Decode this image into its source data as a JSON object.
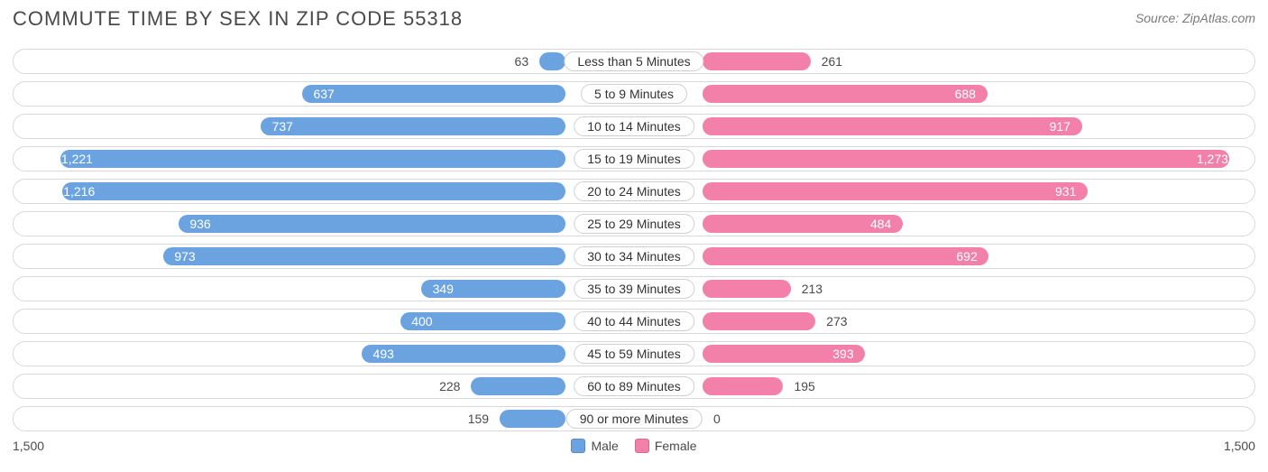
{
  "title": "COMMUTE TIME BY SEX IN ZIP CODE 55318",
  "source": "Source: ZipAtlas.com",
  "chart": {
    "type": "diverging-bar",
    "axis_max": 1500,
    "axis_left_label": "1,500",
    "axis_right_label": "1,500",
    "label_threshold_inside": 300,
    "colors": {
      "male": "#6ba3e0",
      "female": "#f280a8",
      "row_border": "#d9d9d9",
      "pill_border": "#cfcfcf",
      "text_inside": "#ffffff",
      "text_outside": "#4a4a4a",
      "background": "#ffffff"
    },
    "legend": [
      {
        "label": "Male",
        "color": "#6ba3e0"
      },
      {
        "label": "Female",
        "color": "#f280a8"
      }
    ],
    "rows": [
      {
        "category": "Less than 5 Minutes",
        "male": 63,
        "male_label": "63",
        "female": 261,
        "female_label": "261"
      },
      {
        "category": "5 to 9 Minutes",
        "male": 637,
        "male_label": "637",
        "female": 688,
        "female_label": "688"
      },
      {
        "category": "10 to 14 Minutes",
        "male": 737,
        "male_label": "737",
        "female": 917,
        "female_label": "917"
      },
      {
        "category": "15 to 19 Minutes",
        "male": 1221,
        "male_label": "1,221",
        "female": 1273,
        "female_label": "1,273"
      },
      {
        "category": "20 to 24 Minutes",
        "male": 1216,
        "male_label": "1,216",
        "female": 931,
        "female_label": "931"
      },
      {
        "category": "25 to 29 Minutes",
        "male": 936,
        "male_label": "936",
        "female": 484,
        "female_label": "484"
      },
      {
        "category": "30 to 34 Minutes",
        "male": 973,
        "male_label": "973",
        "female": 692,
        "female_label": "692"
      },
      {
        "category": "35 to 39 Minutes",
        "male": 349,
        "male_label": "349",
        "female": 213,
        "female_label": "213"
      },
      {
        "category": "40 to 44 Minutes",
        "male": 400,
        "male_label": "400",
        "female": 273,
        "female_label": "273"
      },
      {
        "category": "45 to 59 Minutes",
        "male": 493,
        "male_label": "493",
        "female": 393,
        "female_label": "393"
      },
      {
        "category": "60 to 89 Minutes",
        "male": 228,
        "male_label": "228",
        "female": 195,
        "female_label": "195"
      },
      {
        "category": "90 or more Minutes",
        "male": 159,
        "male_label": "159",
        "female": 0,
        "female_label": "0"
      }
    ]
  }
}
